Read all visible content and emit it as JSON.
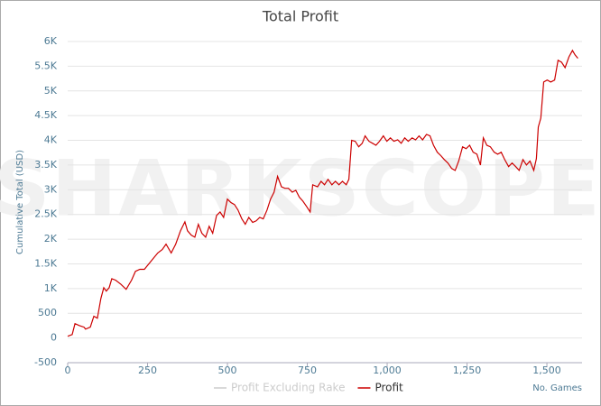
{
  "chart_data": {
    "type": "line",
    "title": "Total Profit",
    "watermark": "SHARKSCOPE",
    "x_label": "No. Games",
    "y_label": "Cumulative Total (USD)",
    "xlim": [
      0,
      1610
    ],
    "ylim": [
      -500,
      6000
    ],
    "xticks": [
      0,
      250,
      500,
      750,
      {
        "value": 1000,
        "label": "1,000"
      },
      {
        "value": 1250,
        "label": "1,250"
      },
      {
        "value": 1500,
        "label": "1,500"
      }
    ],
    "yticks": [
      -500,
      0,
      500,
      {
        "value": 1000,
        "label": "1K"
      },
      {
        "value": 1500,
        "label": "1.5K"
      },
      {
        "value": 2000,
        "label": "2K"
      },
      {
        "value": 2500,
        "label": "2.5K"
      },
      {
        "value": 3000,
        "label": "3K"
      },
      {
        "value": 3500,
        "label": "3.5K"
      },
      {
        "value": 4000,
        "label": "4K"
      },
      {
        "value": 4500,
        "label": "4.5K"
      },
      {
        "value": 5000,
        "label": "5K"
      },
      {
        "value": 5500,
        "label": "5.5K"
      },
      {
        "value": 6000,
        "label": "6K"
      }
    ],
    "grid": true,
    "x": [
      0,
      14,
      23,
      37,
      51,
      56,
      71,
      82,
      93,
      104,
      113,
      121,
      130,
      138,
      150,
      166,
      183,
      200,
      212,
      226,
      240,
      254,
      268,
      282,
      296,
      308,
      324,
      338,
      353,
      367,
      375,
      387,
      398,
      409,
      420,
      432,
      443,
      454,
      466,
      477,
      488,
      500,
      511,
      522,
      533,
      545,
      556,
      567,
      579,
      590,
      601,
      612,
      624,
      635,
      646,
      657,
      669,
      680,
      691,
      703,
      714,
      725,
      736,
      748,
      759,
      767,
      782,
      793,
      804,
      815,
      827,
      838,
      849,
      860,
      872,
      880,
      889,
      900,
      911,
      922,
      931,
      943,
      954,
      965,
      976,
      988,
      999,
      1010,
      1021,
      1033,
      1044,
      1055,
      1066,
      1078,
      1089,
      1100,
      1111,
      1123,
      1134,
      1145,
      1157,
      1168,
      1179,
      1190,
      1202,
      1213,
      1224,
      1236,
      1247,
      1258,
      1269,
      1281,
      1292,
      1301,
      1312,
      1323,
      1335,
      1346,
      1357,
      1368,
      1380,
      1391,
      1402,
      1413,
      1425,
      1436,
      1447,
      1459,
      1467,
      1473,
      1481,
      1490,
      1501,
      1512,
      1524,
      1535,
      1546,
      1557,
      1569,
      1580,
      1588,
      1597
    ],
    "series": [
      {
        "name": "Profit Excluding Rake",
        "color": "#cccccc",
        "visible": false
      },
      {
        "name": "Profit",
        "color": "#cc0000",
        "visible": true,
        "values": [
          35,
          70,
          290,
          250,
          220,
          180,
          220,
          440,
          400,
          800,
          1020,
          950,
          1020,
          1200,
          1170,
          1090,
          985,
          1170,
          1350,
          1390,
          1390,
          1500,
          1610,
          1720,
          1790,
          1900,
          1720,
          1900,
          2170,
          2350,
          2170,
          2080,
          2040,
          2300,
          2120,
          2040,
          2260,
          2120,
          2480,
          2550,
          2440,
          2810,
          2740,
          2700,
          2590,
          2410,
          2300,
          2440,
          2340,
          2370,
          2440,
          2410,
          2590,
          2810,
          2950,
          3270,
          3060,
          3030,
          3030,
          2950,
          2990,
          2850,
          2770,
          2660,
          2550,
          3100,
          3060,
          3170,
          3100,
          3210,
          3100,
          3170,
          3100,
          3170,
          3100,
          3210,
          4000,
          3980,
          3870,
          3940,
          4090,
          3980,
          3940,
          3900,
          3980,
          4090,
          3980,
          4050,
          3980,
          4010,
          3940,
          4050,
          3980,
          4050,
          4010,
          4090,
          4010,
          4120,
          4090,
          3900,
          3760,
          3690,
          3610,
          3540,
          3430,
          3390,
          3580,
          3870,
          3830,
          3900,
          3760,
          3720,
          3500,
          4050,
          3900,
          3870,
          3760,
          3720,
          3760,
          3610,
          3470,
          3540,
          3470,
          3390,
          3610,
          3500,
          3580,
          3390,
          3630,
          4270,
          4450,
          5180,
          5220,
          5180,
          5220,
          5620,
          5580,
          5470,
          5690,
          5820,
          5730,
          5660
        ]
      }
    ]
  }
}
